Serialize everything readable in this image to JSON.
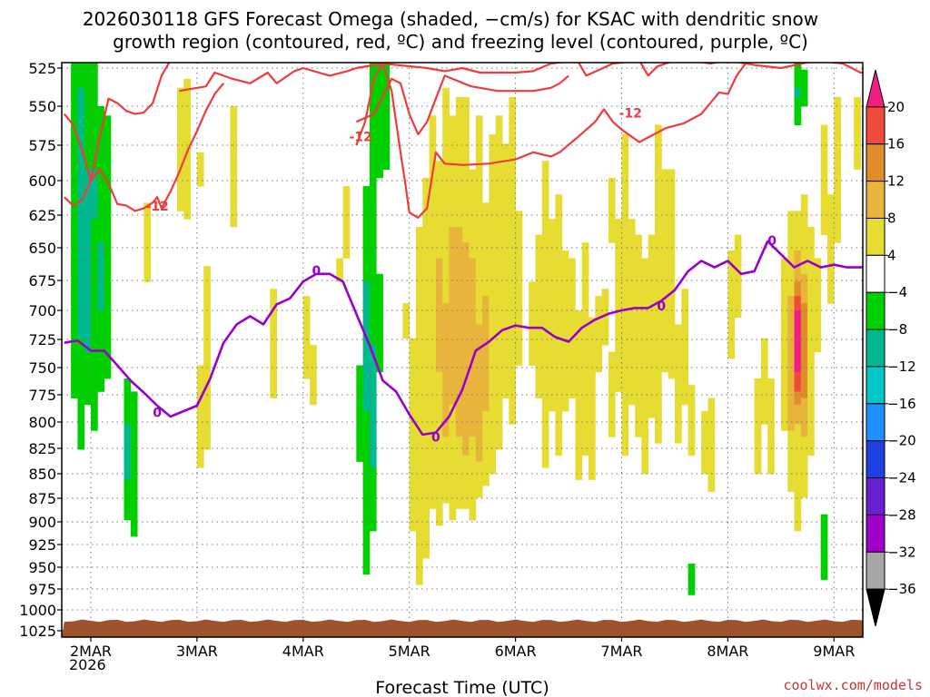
{
  "title_lines": [
    "2026030118 GFS Forecast Omega (shaded, −cm/s) for KSAC with dendritic snow",
    "growth region (contoured, red, ºC) and freezing level (contoured, purple, ºC)"
  ],
  "credit": "coolwx.com/models",
  "colors": {
    "dgz_contour": "#ee3b3b",
    "freezing_contour": "#9900cc",
    "ground": "#a0522d",
    "grid": "#777777",
    "credit": "#cc3333"
  },
  "chart_data": {
    "type": "heatmap",
    "xlabel": "Forecast Time (UTC)",
    "ylabel": "",
    "x_ticks": [
      "2MAR",
      "3MAR",
      "4MAR",
      "5MAR",
      "6MAR",
      "7MAR",
      "8MAR",
      "9MAR"
    ],
    "x_tick_sublabel": "2026",
    "x_range_hours": [
      -6,
      186
    ],
    "y_ticks": [
      525,
      550,
      575,
      600,
      625,
      650,
      675,
      700,
      725,
      750,
      775,
      800,
      825,
      850,
      875,
      900,
      925,
      950,
      975,
      1000,
      1025
    ],
    "y_range_hPa": [
      520,
      1030
    ],
    "y_axis": "pressure (inverted, log-like)",
    "grid": true,
    "colorbar": {
      "levels": [
        -36,
        -32,
        -28,
        -24,
        -20,
        -16,
        -12,
        -8,
        -4,
        4,
        8,
        12,
        16,
        20
      ],
      "colors": [
        "#000000",
        "#a6a6a6",
        "#a000c8",
        "#6a1fd0",
        "#1f3fe0",
        "#1e90ff",
        "#00c8c8",
        "#00b98e",
        "#00d000",
        "#ffffff",
        "#e6dc32",
        "#e8b43c",
        "#e08c28",
        "#f04a3c",
        "#f01e82"
      ],
      "placement": "right"
    },
    "freezing_level": {
      "label": "0",
      "hours": [
        -6,
        -3,
        0,
        3,
        6,
        9,
        12,
        15,
        18,
        21,
        24,
        27,
        30,
        33,
        36,
        39,
        42,
        45,
        48,
        51,
        54,
        57,
        60,
        63,
        66,
        69,
        72,
        75,
        78,
        81,
        84,
        87,
        90,
        93,
        96,
        99,
        102,
        105,
        108,
        111,
        114,
        117,
        120,
        123,
        126,
        129,
        132,
        135,
        138,
        141,
        144,
        147,
        150,
        153,
        156,
        159,
        162,
        165,
        168,
        171,
        174,
        177,
        180,
        183,
        186
      ],
      "pressure_hPa": [
        728,
        726,
        735,
        735,
        748,
        762,
        773,
        785,
        795,
        790,
        785,
        760,
        728,
        712,
        705,
        712,
        695,
        690,
        676,
        670,
        670,
        676,
        703,
        730,
        762,
        772,
        793,
        812,
        810,
        795,
        770,
        735,
        727,
        717,
        713,
        715,
        715,
        723,
        727,
        715,
        708,
        703,
        700,
        698,
        698,
        692,
        683,
        668,
        660,
        665,
        660,
        670,
        668,
        645,
        655,
        665,
        660,
        665,
        663,
        665,
        665,
        662,
        655,
        655,
        655
      ]
    },
    "dgz_lower_minus12": {
      "label": "-12",
      "hours": [
        -6,
        -4,
        -2,
        0,
        2,
        4,
        6,
        8,
        10,
        12,
        14,
        15,
        16,
        18,
        20,
        22,
        24,
        26,
        28,
        30
      ],
      "pressure_hPa": [
        612,
        618,
        614,
        600,
        592,
        602,
        617,
        618,
        622,
        620,
        616,
        612,
        620,
        608,
        594,
        578,
        566,
        553,
        542,
        535
      ]
    },
    "dgz_upper_left": {
      "hours": [
        -6,
        -4,
        -2,
        0,
        2,
        4,
        6,
        8,
        10,
        12,
        14,
        16,
        18,
        20
      ],
      "pressure_hPa": [
        555,
        562,
        578,
        600,
        570,
        545,
        548,
        553,
        555,
        554,
        548,
        530,
        520,
        520
      ]
    },
    "dgz_loop_mid": {
      "label": "-12",
      "hours": [
        60,
        62,
        64,
        66,
        68,
        70,
        71,
        72,
        74,
        76,
        78,
        80,
        84,
        90,
        96,
        100,
        104,
        106,
        110,
        114,
        116,
        118,
        120,
        124,
        126,
        130,
        134,
        138,
        142,
        144,
        146,
        148,
        150
      ],
      "pressure_hPa": [
        575,
        560,
        532,
        522,
        540,
        580,
        600,
        623,
        627,
        620,
        580,
        588,
        589,
        588,
        585,
        580,
        583,
        580,
        570,
        560,
        552,
        560,
        565,
        573,
        570,
        564,
        561,
        555,
        541,
        542,
        530,
        522,
        520
      ]
    },
    "dgz_upper_mid": {
      "hours": [
        60,
        64,
        68,
        70,
        72,
        74,
        76,
        78,
        80,
        86,
        92,
        100,
        104,
        106,
        108
      ],
      "pressure_hPa": [
        560,
        555,
        532,
        535,
        555,
        568,
        560,
        545,
        530,
        537,
        540,
        540,
        538,
        535,
        530
      ]
    },
    "dgz_upper_top": {
      "hours": [
        20,
        26,
        28,
        32,
        36,
        40,
        42,
        46,
        48,
        54,
        58,
        60,
        66,
        76,
        80,
        84,
        88,
        92,
        96,
        100,
        104,
        110,
        112,
        118,
        124,
        126,
        128,
        132,
        136,
        140,
        144,
        150,
        156,
        164,
        170,
        174,
        178,
        182,
        186
      ],
      "pressure_hPa": [
        540,
        537,
        528,
        532,
        535,
        528,
        535,
        527,
        525,
        530,
        527,
        525,
        522,
        525,
        527,
        525,
        528,
        528,
        528,
        527,
        522,
        520,
        530,
        522,
        520,
        530,
        524,
        520,
        520,
        522,
        520,
        523,
        525,
        520,
        522,
        528,
        528,
        525,
        520
      ]
    },
    "ground_pressure_hPa": 1013
  }
}
